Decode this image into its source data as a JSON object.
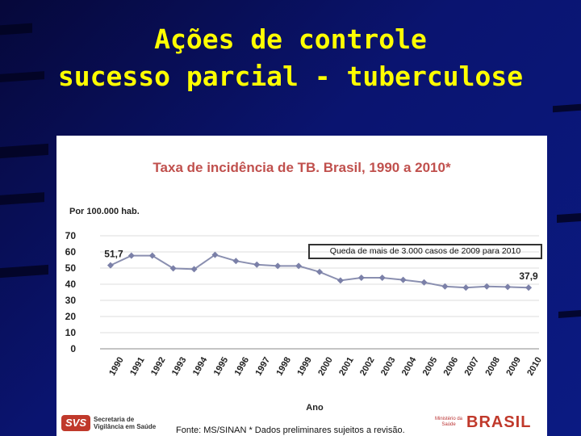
{
  "slide": {
    "title_line1": "Ações de controle",
    "title_line2": "sucesso parcial - tuberculose"
  },
  "chart_data": {
    "type": "line",
    "title": "Taxa de incidência de TB. Brasil, 1990 a 2010*",
    "ylabel": "Por 100.000 hab.",
    "xlabel": "Ano",
    "ylim": [
      0,
      70
    ],
    "yticks": [
      0,
      10,
      20,
      30,
      40,
      50,
      60,
      70
    ],
    "grid": true,
    "categories": [
      "1990",
      "1991",
      "1992",
      "1993",
      "1994",
      "1995",
      "1996",
      "1997",
      "1998",
      "1999",
      "2000",
      "2001",
      "2002",
      "2003",
      "2004",
      "2005",
      "2006",
      "2007",
      "2008",
      "2009",
      "2010"
    ],
    "values": [
      51.7,
      57.7,
      57.7,
      49.8,
      49.3,
      58.2,
      54.4,
      52.1,
      51.3,
      51.3,
      47.6,
      42.3,
      44.0,
      44.0,
      42.7,
      41.1,
      38.6,
      37.9,
      38.6,
      38.3,
      37.9
    ],
    "point_labels": [
      {
        "index": 0,
        "text": "51,7"
      },
      {
        "index": 20,
        "text": "37,9"
      }
    ],
    "annotation": "Queda de mais de 3.000 casos de 2009 para 2010",
    "line_color": "#8a8fb0",
    "marker_color": "#7b80a8"
  },
  "footer": {
    "svs_logo": "SVS",
    "svs_line1": "Secretaria de",
    "svs_line2": "Vigilância em Saúde",
    "source": "Fonte: MS/SINAN * Dados preliminares sujeitos a revisão.",
    "ministerio_line1": "Ministério da",
    "ministerio_line2": "Saúde",
    "brasil": "BRASIL"
  }
}
